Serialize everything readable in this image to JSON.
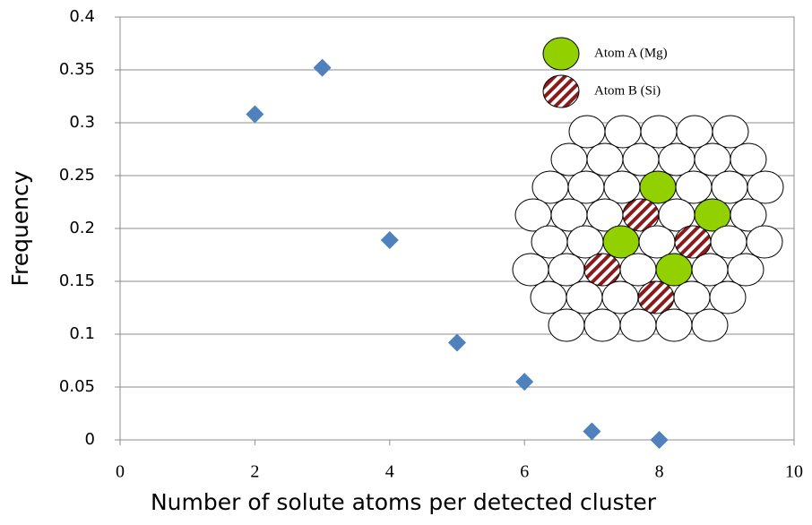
{
  "chart_data": {
    "type": "scatter",
    "x_label": "Number of solute atoms per detected cluster",
    "y_label": "Frequency",
    "x": [
      2,
      3,
      4,
      5,
      6,
      7,
      8
    ],
    "values": [
      0.308,
      0.352,
      0.189,
      0.092,
      0.055,
      0.008,
      0.0
    ],
    "color": "#4f81bd",
    "xlim": [
      0,
      10
    ],
    "xticks": [
      0,
      2,
      4,
      6,
      8,
      10
    ],
    "ylim": [
      0,
      0.4
    ],
    "yticks": [
      0,
      0.05,
      0.1,
      0.15,
      0.2,
      0.25,
      0.3,
      0.35,
      0.4
    ],
    "grid": true,
    "annotations": [
      "Atom A (Mg)",
      "Atom B (Si)"
    ]
  }
}
